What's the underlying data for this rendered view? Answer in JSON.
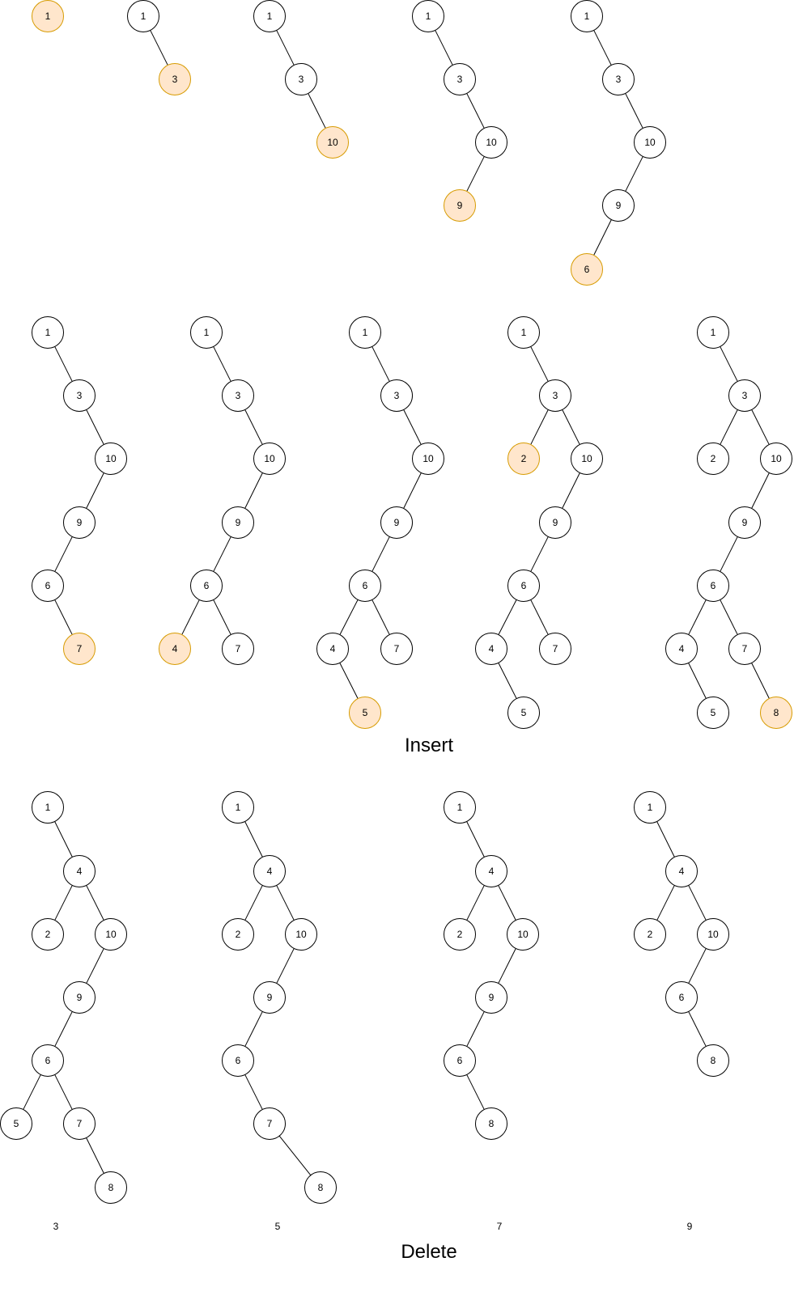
{
  "colors": {
    "node_fill": "#ffffff",
    "node_stroke": "#000000",
    "highlight_fill": "#ffe6cc",
    "highlight_stroke": "#d79b00",
    "edge": "#000000",
    "text": "#000000"
  },
  "section_labels": {
    "insert": "Insert",
    "delete": "Delete"
  },
  "insert_trees": [
    {
      "nodes": [
        {
          "id": "a",
          "v": "1",
          "hl": true
        }
      ],
      "edges": []
    },
    {
      "nodes": [
        {
          "id": "a",
          "v": "1"
        },
        {
          "id": "b",
          "v": "3",
          "hl": true
        }
      ],
      "edges": [
        [
          "a",
          "b"
        ]
      ]
    },
    {
      "nodes": [
        {
          "id": "a",
          "v": "1"
        },
        {
          "id": "b",
          "v": "3"
        },
        {
          "id": "c",
          "v": "10",
          "hl": true
        }
      ],
      "edges": [
        [
          "a",
          "b"
        ],
        [
          "b",
          "c"
        ]
      ]
    },
    {
      "nodes": [
        {
          "id": "a",
          "v": "1"
        },
        {
          "id": "b",
          "v": "3"
        },
        {
          "id": "c",
          "v": "10"
        },
        {
          "id": "d",
          "v": "9",
          "hl": true
        }
      ],
      "edges": [
        [
          "a",
          "b"
        ],
        [
          "b",
          "c"
        ],
        [
          "c",
          "d"
        ]
      ]
    },
    {
      "nodes": [
        {
          "id": "a",
          "v": "1"
        },
        {
          "id": "b",
          "v": "3"
        },
        {
          "id": "c",
          "v": "10"
        },
        {
          "id": "d",
          "v": "9"
        },
        {
          "id": "e",
          "v": "6",
          "hl": true
        }
      ],
      "edges": [
        [
          "a",
          "b"
        ],
        [
          "b",
          "c"
        ],
        [
          "c",
          "d"
        ],
        [
          "d",
          "e"
        ]
      ]
    },
    {
      "nodes": [
        {
          "id": "a",
          "v": "1"
        },
        {
          "id": "b",
          "v": "3"
        },
        {
          "id": "c",
          "v": "10"
        },
        {
          "id": "d",
          "v": "9"
        },
        {
          "id": "e",
          "v": "6"
        },
        {
          "id": "f",
          "v": "7",
          "hl": true
        }
      ],
      "edges": [
        [
          "a",
          "b"
        ],
        [
          "b",
          "c"
        ],
        [
          "c",
          "d"
        ],
        [
          "d",
          "e"
        ],
        [
          "e",
          "f"
        ]
      ]
    },
    {
      "nodes": [
        {
          "id": "a",
          "v": "1"
        },
        {
          "id": "b",
          "v": "3"
        },
        {
          "id": "c",
          "v": "10"
        },
        {
          "id": "d",
          "v": "9"
        },
        {
          "id": "e",
          "v": "6"
        },
        {
          "id": "g",
          "v": "4",
          "hl": true
        },
        {
          "id": "f",
          "v": "7"
        }
      ],
      "edges": [
        [
          "a",
          "b"
        ],
        [
          "b",
          "c"
        ],
        [
          "c",
          "d"
        ],
        [
          "d",
          "e"
        ],
        [
          "e",
          "g"
        ],
        [
          "e",
          "f"
        ]
      ]
    },
    {
      "nodes": [
        {
          "id": "a",
          "v": "1"
        },
        {
          "id": "b",
          "v": "3"
        },
        {
          "id": "c",
          "v": "10"
        },
        {
          "id": "d",
          "v": "9"
        },
        {
          "id": "e",
          "v": "6"
        },
        {
          "id": "g",
          "v": "4"
        },
        {
          "id": "f",
          "v": "7"
        },
        {
          "id": "h",
          "v": "5",
          "hl": true
        }
      ],
      "edges": [
        [
          "a",
          "b"
        ],
        [
          "b",
          "c"
        ],
        [
          "c",
          "d"
        ],
        [
          "d",
          "e"
        ],
        [
          "e",
          "g"
        ],
        [
          "e",
          "f"
        ],
        [
          "g",
          "h"
        ]
      ]
    },
    {
      "nodes": [
        {
          "id": "a",
          "v": "1"
        },
        {
          "id": "b",
          "v": "3"
        },
        {
          "id": "i",
          "v": "2",
          "hl": true
        },
        {
          "id": "c",
          "v": "10"
        },
        {
          "id": "d",
          "v": "9"
        },
        {
          "id": "e",
          "v": "6"
        },
        {
          "id": "g",
          "v": "4"
        },
        {
          "id": "f",
          "v": "7"
        },
        {
          "id": "h",
          "v": "5"
        }
      ],
      "edges": [
        [
          "a",
          "b"
        ],
        [
          "b",
          "i"
        ],
        [
          "b",
          "c"
        ],
        [
          "c",
          "d"
        ],
        [
          "d",
          "e"
        ],
        [
          "e",
          "g"
        ],
        [
          "e",
          "f"
        ],
        [
          "g",
          "h"
        ]
      ]
    },
    {
      "nodes": [
        {
          "id": "a",
          "v": "1"
        },
        {
          "id": "b",
          "v": "3"
        },
        {
          "id": "i",
          "v": "2"
        },
        {
          "id": "c",
          "v": "10"
        },
        {
          "id": "d",
          "v": "9"
        },
        {
          "id": "e",
          "v": "6"
        },
        {
          "id": "g",
          "v": "4"
        },
        {
          "id": "f",
          "v": "7"
        },
        {
          "id": "h",
          "v": "5"
        },
        {
          "id": "j",
          "v": "8",
          "hl": true
        }
      ],
      "edges": [
        [
          "a",
          "b"
        ],
        [
          "b",
          "i"
        ],
        [
          "b",
          "c"
        ],
        [
          "c",
          "d"
        ],
        [
          "d",
          "e"
        ],
        [
          "e",
          "g"
        ],
        [
          "e",
          "f"
        ],
        [
          "g",
          "h"
        ],
        [
          "f",
          "j"
        ]
      ]
    }
  ],
  "delete_trees": [
    {
      "caption": "3",
      "nodes": [
        {
          "id": "a",
          "v": "1"
        },
        {
          "id": "b",
          "v": "4"
        },
        {
          "id": "i",
          "v": "2"
        },
        {
          "id": "c",
          "v": "10"
        },
        {
          "id": "d",
          "v": "9"
        },
        {
          "id": "e",
          "v": "6"
        },
        {
          "id": "h",
          "v": "5"
        },
        {
          "id": "f",
          "v": "7"
        },
        {
          "id": "j",
          "v": "8"
        }
      ],
      "edges": [
        [
          "a",
          "b"
        ],
        [
          "b",
          "i"
        ],
        [
          "b",
          "c"
        ],
        [
          "c",
          "d"
        ],
        [
          "d",
          "e"
        ],
        [
          "e",
          "h"
        ],
        [
          "e",
          "f"
        ],
        [
          "f",
          "j"
        ]
      ]
    },
    {
      "caption": "5",
      "nodes": [
        {
          "id": "a",
          "v": "1"
        },
        {
          "id": "b",
          "v": "4"
        },
        {
          "id": "i",
          "v": "2"
        },
        {
          "id": "c",
          "v": "10"
        },
        {
          "id": "d",
          "v": "9"
        },
        {
          "id": "e",
          "v": "6"
        },
        {
          "id": "f",
          "v": "7"
        },
        {
          "id": "j",
          "v": "8"
        }
      ],
      "edges": [
        [
          "a",
          "b"
        ],
        [
          "b",
          "i"
        ],
        [
          "b",
          "c"
        ],
        [
          "c",
          "d"
        ],
        [
          "d",
          "e"
        ],
        [
          "e",
          "f"
        ],
        [
          "f",
          "j"
        ]
      ]
    },
    {
      "caption": "7",
      "nodes": [
        {
          "id": "a",
          "v": "1"
        },
        {
          "id": "b",
          "v": "4"
        },
        {
          "id": "i",
          "v": "2"
        },
        {
          "id": "c",
          "v": "10"
        },
        {
          "id": "d",
          "v": "9"
        },
        {
          "id": "e",
          "v": "6"
        },
        {
          "id": "j",
          "v": "8"
        }
      ],
      "edges": [
        [
          "a",
          "b"
        ],
        [
          "b",
          "i"
        ],
        [
          "b",
          "c"
        ],
        [
          "c",
          "d"
        ],
        [
          "d",
          "e"
        ],
        [
          "e",
          "j"
        ]
      ]
    },
    {
      "caption": "9",
      "nodes": [
        {
          "id": "a",
          "v": "1"
        },
        {
          "id": "b",
          "v": "4"
        },
        {
          "id": "i",
          "v": "2"
        },
        {
          "id": "c",
          "v": "10"
        },
        {
          "id": "e",
          "v": "6"
        },
        {
          "id": "j",
          "v": "8"
        }
      ],
      "edges": [
        [
          "a",
          "b"
        ],
        [
          "b",
          "i"
        ],
        [
          "b",
          "c"
        ],
        [
          "c",
          "e"
        ],
        [
          "e",
          "j"
        ]
      ]
    }
  ]
}
